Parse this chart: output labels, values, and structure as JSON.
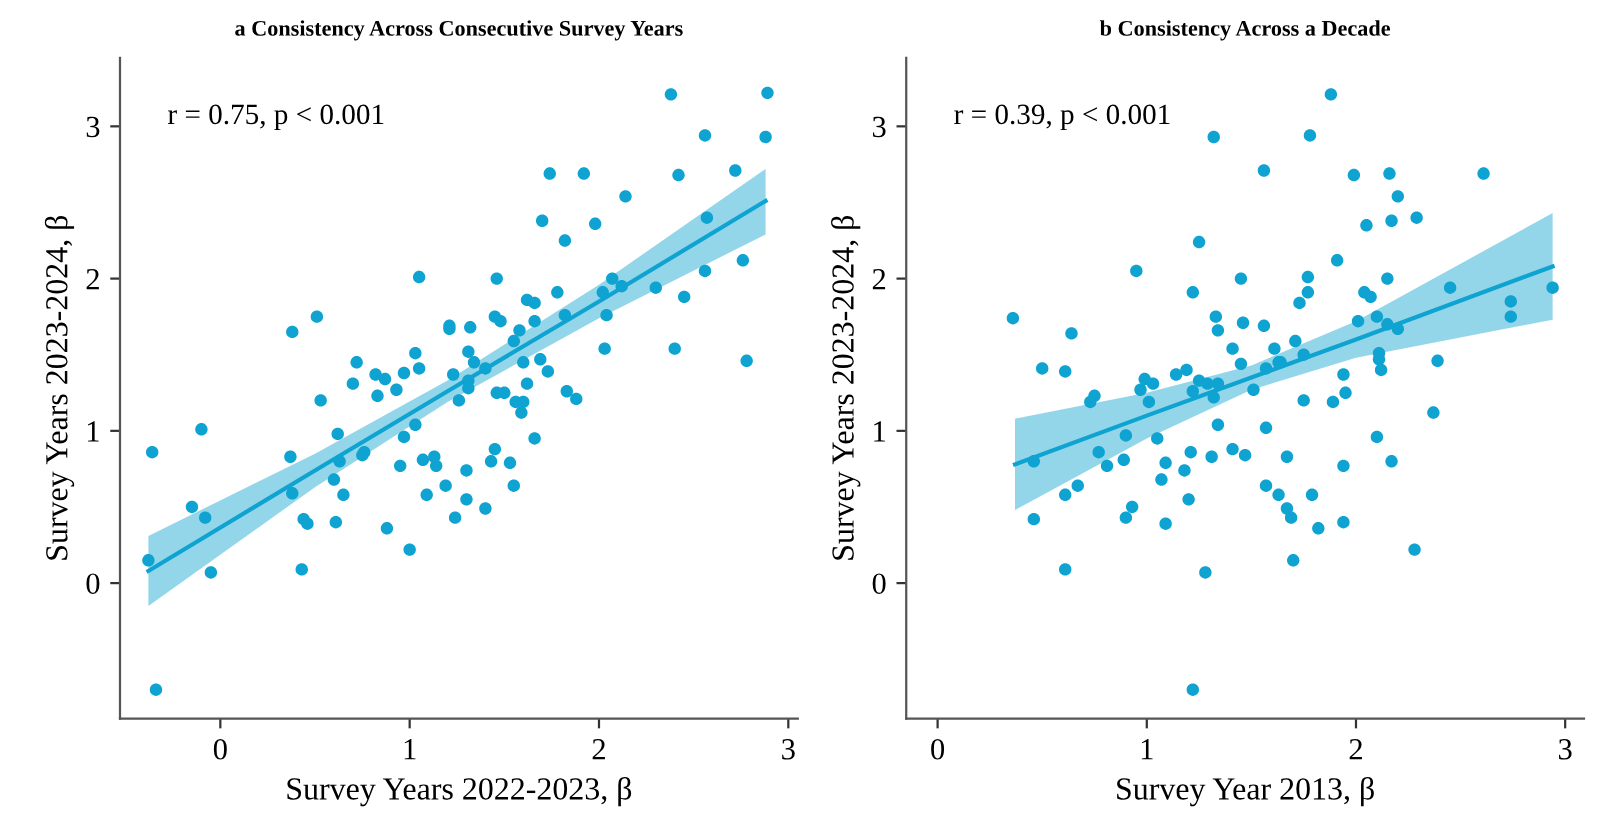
{
  "chart_data": [
    {
      "type": "scatter",
      "title": "a Consistency Across Consecutive Survey Years",
      "xlabel": "Survey Years 2022-2023, β",
      "ylabel": "Survey Years 2023-2024, β",
      "annotations": [
        "r = 0.75, p < 0.001"
      ],
      "xlim": [
        -0.53,
        3.05
      ],
      "ylim": [
        -0.89,
        3.45
      ],
      "xticks": [
        0,
        1,
        2,
        3
      ],
      "yticks": [
        0,
        1,
        2,
        3
      ],
      "grid": false,
      "legend": false,
      "series": [
        {
          "type": "scatter",
          "color": "#0fa3d1",
          "marker": "circle",
          "x": [
            2.38,
            2.89,
            2.56,
            2.88,
            1.74,
            1.92,
            2.42,
            2.72,
            2.14,
            1.7,
            1.98,
            1.82,
            2.57,
            2.76,
            2.56,
            1.05,
            1.46,
            1.62,
            1.66,
            1.78,
            2.07,
            2.12,
            2.3,
            2.02,
            2.45,
            1.45,
            1.48,
            1.82,
            2.04,
            1.21,
            1.21,
            1.32,
            1.66,
            1.58,
            1.55,
            0.51,
            0.38,
            2.03,
            2.4,
            2.78,
            1.03,
            1.31,
            1.34,
            1.69,
            1.6,
            1.4,
            1.05,
            0.97,
            0.72,
            0.82,
            0.87,
            0.7,
            0.93,
            0.83,
            1.23,
            1.73,
            1.62,
            1.31,
            1.31,
            1.26,
            1.46,
            1.5,
            1.83,
            1.88,
            1.56,
            1.6,
            1.59,
            0.53,
            -0.1,
            0.62,
            0.97,
            1.03,
            1.66,
            -0.36,
            0.37,
            0.6,
            0.63,
            0.75,
            0.76,
            0.95,
            1.07,
            1.13,
            1.14,
            1.3,
            1.45,
            1.43,
            1.53,
            1.55,
            1.4,
            1.3,
            1.24,
            1.19,
            1.09,
            0.88,
            1.0,
            0.65,
            0.38,
            0.44,
            0.46,
            0.61,
            0.43,
            -0.15,
            -0.08,
            -0.05,
            -0.38,
            -0.34
          ],
          "values": [
            3.21,
            3.22,
            2.94,
            2.93,
            2.69,
            2.69,
            2.68,
            2.71,
            2.54,
            2.38,
            2.36,
            2.25,
            2.4,
            2.12,
            2.05,
            2.01,
            2.0,
            1.86,
            1.84,
            1.91,
            2.0,
            1.95,
            1.94,
            1.91,
            1.88,
            1.75,
            1.72,
            1.76,
            1.76,
            1.69,
            1.67,
            1.68,
            1.72,
            1.66,
            1.59,
            1.75,
            1.65,
            1.54,
            1.54,
            1.46,
            1.51,
            1.52,
            1.45,
            1.47,
            1.45,
            1.41,
            1.41,
            1.38,
            1.45,
            1.37,
            1.34,
            1.31,
            1.27,
            1.23,
            1.37,
            1.39,
            1.31,
            1.33,
            1.28,
            1.2,
            1.25,
            1.25,
            1.26,
            1.21,
            1.19,
            1.19,
            1.12,
            1.2,
            1.01,
            0.98,
            0.96,
            1.04,
            0.95,
            0.86,
            0.83,
            0.68,
            0.8,
            0.84,
            0.86,
            0.77,
            0.81,
            0.83,
            0.77,
            0.74,
            0.88,
            0.8,
            0.79,
            0.64,
            0.49,
            0.55,
            0.43,
            0.64,
            0.58,
            0.36,
            0.22,
            0.58,
            0.59,
            0.42,
            0.39,
            0.4,
            0.09,
            0.5,
            0.43,
            0.07,
            0.15,
            -0.7
          ]
        },
        {
          "type": "line",
          "color": "#0fa3d1",
          "x": [
            -0.38,
            0.5,
            1.2,
            2.0,
            2.88
          ],
          "values": [
            0.08,
            0.74,
            1.26,
            1.85,
            2.51
          ],
          "lower": [
            -0.15,
            0.63,
            1.19,
            1.74,
            2.29
          ],
          "upper": [
            0.31,
            0.85,
            1.33,
            1.96,
            2.72
          ]
        }
      ]
    },
    {
      "type": "scatter",
      "title": "b Consistency Across a Decade",
      "xlabel": "Survey Year 2013, β",
      "ylabel": "Survey Years 2023-2024, β",
      "annotations": [
        "r = 0.39, p < 0.001"
      ],
      "xlim": [
        -0.15,
        3.09
      ],
      "ylim": [
        -0.89,
        3.45
      ],
      "xticks": [
        0,
        1,
        2,
        3
      ],
      "yticks": [
        0,
        1,
        2,
        3
      ],
      "grid": false,
      "legend": false,
      "series": [
        {
          "type": "scatter",
          "color": "#0fa3d1",
          "marker": "circle",
          "x": [
            1.88,
            1.32,
            1.78,
            1.56,
            1.99,
            2.16,
            2.61,
            2.2,
            1.25,
            2.05,
            2.17,
            2.29,
            1.91,
            0.95,
            1.45,
            1.77,
            2.15,
            2.45,
            2.94,
            1.22,
            1.73,
            1.77,
            2.04,
            2.07,
            2.74,
            2.74,
            0.36,
            1.33,
            1.46,
            1.56,
            2.01,
            2.1,
            2.15,
            2.2,
            0.64,
            1.34,
            1.41,
            1.61,
            1.71,
            1.64,
            1.63,
            1.45,
            1.75,
            2.11,
            2.11,
            2.39,
            0.5,
            0.61,
            1.57,
            1.14,
            1.19,
            1.25,
            1.94,
            2.12,
            0.99,
            1.03,
            0.97,
            1.22,
            1.29,
            1.34,
            1.32,
            1.51,
            0.73,
            0.75,
            1.01,
            1.95,
            1.75,
            1.89,
            2.37,
            1.34,
            1.57,
            0.9,
            1.05,
            2.1,
            0.46,
            0.77,
            0.81,
            0.67,
            0.61,
            0.46,
            0.61,
            0.89,
            0.9,
            0.93,
            1.07,
            1.09,
            1.09,
            1.18,
            1.21,
            1.2,
            1.31,
            1.41,
            1.47,
            1.28,
            1.22,
            1.57,
            1.63,
            1.67,
            1.67,
            1.69,
            1.7,
            1.79,
            1.82,
            1.94,
            1.94,
            2.17,
            2.28
          ],
          "values": [
            3.21,
            2.93,
            2.94,
            2.71,
            2.68,
            2.69,
            2.69,
            2.54,
            2.24,
            2.35,
            2.38,
            2.4,
            2.12,
            2.05,
            2.0,
            2.01,
            2.0,
            1.94,
            1.94,
            1.91,
            1.84,
            1.91,
            1.91,
            1.88,
            1.85,
            1.75,
            1.74,
            1.75,
            1.71,
            1.69,
            1.72,
            1.75,
            1.7,
            1.67,
            1.64,
            1.66,
            1.54,
            1.54,
            1.59,
            1.45,
            1.45,
            1.44,
            1.5,
            1.51,
            1.47,
            1.46,
            1.41,
            1.39,
            1.41,
            1.37,
            1.4,
            1.33,
            1.37,
            1.4,
            1.34,
            1.31,
            1.27,
            1.26,
            1.31,
            1.31,
            1.22,
            1.27,
            1.19,
            1.23,
            1.19,
            1.25,
            1.2,
            1.19,
            1.12,
            1.04,
            1.02,
            0.97,
            0.95,
            0.96,
            0.8,
            0.86,
            0.77,
            0.64,
            0.58,
            0.42,
            0.09,
            0.81,
            0.43,
            0.5,
            0.68,
            0.79,
            0.39,
            0.74,
            0.86,
            0.55,
            0.83,
            0.88,
            0.84,
            0.07,
            -0.7,
            0.64,
            0.58,
            0.83,
            0.49,
            0.43,
            0.15,
            0.58,
            0.36,
            0.77,
            0.4,
            0.8,
            0.22
          ]
        },
        {
          "type": "line",
          "color": "#0fa3d1",
          "x": [
            0.37,
            1.0,
            1.5,
            2.0,
            2.94
          ],
          "values": [
            0.78,
            1.1,
            1.35,
            1.6,
            2.08
          ],
          "lower": [
            0.48,
            0.95,
            1.27,
            1.48,
            1.73
          ],
          "upper": [
            1.08,
            1.25,
            1.43,
            1.72,
            2.43
          ]
        }
      ]
    }
  ]
}
